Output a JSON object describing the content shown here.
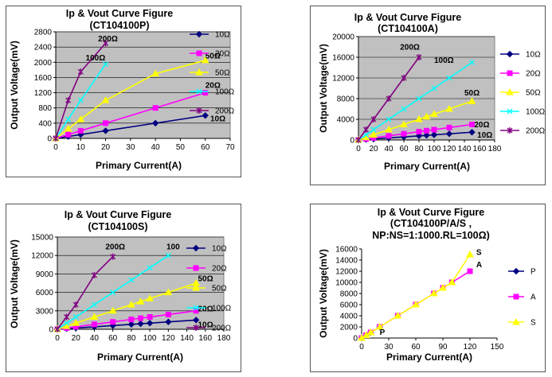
{
  "chart_data": [
    {
      "type": "line",
      "title": "Ip & Vout Curve Figure",
      "subtitle": "(CT104100P)",
      "xlabel": "Primary  Current(A)",
      "ylabel": "Output Voltage(mV)",
      "xlim": [
        0,
        70
      ],
      "ylim": [
        0,
        2800
      ],
      "xticks": [
        0,
        10,
        20,
        30,
        40,
        50,
        60,
        70
      ],
      "yticks": [
        0,
        400,
        800,
        1200,
        1600,
        2000,
        2400,
        2800
      ],
      "grid": true,
      "legend": "right",
      "series": [
        {
          "name": "10Ω",
          "color": "#000080",
          "marker": "diamond",
          "x": [
            0,
            5,
            10,
            20,
            40,
            60
          ],
          "y": [
            0,
            50,
            100,
            200,
            400,
            600
          ]
        },
        {
          "name": "20Ω",
          "color": "#ff00ff",
          "marker": "square",
          "x": [
            0,
            5,
            10,
            20,
            40,
            60
          ],
          "y": [
            0,
            100,
            200,
            400,
            800,
            1200
          ]
        },
        {
          "name": "50Ω",
          "color": "#ffff00",
          "marker": "triangle",
          "x": [
            0,
            5,
            10,
            20,
            40,
            60
          ],
          "y": [
            0,
            250,
            500,
            1000,
            1700,
            2050
          ]
        },
        {
          "name": "100Ω",
          "color": "#00ffff",
          "marker": "x",
          "x": [
            0,
            5,
            10,
            20
          ],
          "y": [
            0,
            500,
            1000,
            1950
          ]
        },
        {
          "name": "200Ω",
          "color": "#800080",
          "marker": "asterisk",
          "x": [
            0,
            5,
            10,
            20
          ],
          "y": [
            0,
            1000,
            1750,
            2500
          ]
        }
      ],
      "annotations": [
        {
          "text": "10Ω",
          "x": 62,
          "y": 450
        },
        {
          "text": "20Ω",
          "x": 60,
          "y": 1330
        },
        {
          "text": "50Ω",
          "x": 60,
          "y": 2100
        },
        {
          "text": "100Ω",
          "x": 12,
          "y": 2050
        },
        {
          "text": "200Ω",
          "x": 17,
          "y": 2550
        }
      ]
    },
    {
      "type": "line",
      "title": "Ip & Vout Curve Figure",
      "subtitle": "(CT104100A)",
      "xlabel": "Primary  Current(A)",
      "ylabel": "Output Voltage(mV)",
      "xlim": [
        0,
        180
      ],
      "ylim": [
        0,
        20000
      ],
      "xticks": [
        0,
        20,
        40,
        60,
        80,
        100,
        120,
        140,
        160,
        180
      ],
      "yticks": [
        0,
        4000,
        8000,
        12000,
        16000,
        20000
      ],
      "grid": true,
      "legend": "right",
      "series": [
        {
          "name": "10Ω",
          "color": "#000080",
          "marker": "diamond",
          "x": [
            0,
            10,
            20,
            40,
            60,
            80,
            90,
            100,
            120,
            150
          ],
          "y": [
            0,
            100,
            200,
            400,
            600,
            800,
            900,
            1000,
            1200,
            1500
          ]
        },
        {
          "name": "20Ω",
          "color": "#ff00ff",
          "marker": "square",
          "x": [
            0,
            10,
            20,
            40,
            60,
            80,
            90,
            100,
            120,
            150
          ],
          "y": [
            0,
            200,
            400,
            800,
            1200,
            1600,
            1800,
            2000,
            2400,
            3000
          ]
        },
        {
          "name": "50Ω",
          "color": "#ffff00",
          "marker": "triangle",
          "x": [
            0,
            10,
            20,
            40,
            60,
            80,
            90,
            100,
            120,
            150
          ],
          "y": [
            0,
            500,
            1000,
            2000,
            3000,
            4000,
            4500,
            5000,
            6000,
            7500
          ]
        },
        {
          "name": "100Ω",
          "color": "#00ffff",
          "marker": "x",
          "x": [
            0,
            10,
            20,
            40,
            60,
            80,
            100,
            120,
            150
          ],
          "y": [
            0,
            1000,
            2000,
            4000,
            6000,
            8000,
            10000,
            12000,
            15000
          ]
        },
        {
          "name": "200Ω",
          "color": "#800080",
          "marker": "asterisk",
          "x": [
            0,
            10,
            20,
            40,
            60,
            80
          ],
          "y": [
            0,
            2000,
            4000,
            8000,
            12000,
            16000
          ]
        }
      ],
      "annotations": [
        {
          "text": "10Ω",
          "x": 157,
          "y": 500
        },
        {
          "text": "20Ω",
          "x": 153,
          "y": 2500
        },
        {
          "text": "50Ω",
          "x": 140,
          "y": 8600
        },
        {
          "text": "100Ω",
          "x": 100,
          "y": 14900
        },
        {
          "text": "200Ω",
          "x": 55,
          "y": 17500
        }
      ]
    },
    {
      "type": "line",
      "title": "Ip & Vout Curve Figure",
      "subtitle": "(CT104100S)",
      "xlabel": "Primary  Current(A)",
      "ylabel": "Output Voltage(mV)",
      "xlim": [
        0,
        180
      ],
      "ylim": [
        0,
        15000
      ],
      "xticks": [
        0,
        20,
        40,
        60,
        80,
        100,
        120,
        140,
        160,
        180
      ],
      "yticks": [
        0,
        3000,
        6000,
        9000,
        12000,
        15000
      ],
      "grid": true,
      "legend": "right",
      "series": [
        {
          "name": "10Ω",
          "color": "#000080",
          "marker": "diamond",
          "x": [
            0,
            10,
            20,
            40,
            60,
            80,
            90,
            100,
            120,
            150
          ],
          "y": [
            0,
            100,
            200,
            400,
            600,
            800,
            900,
            1000,
            1200,
            1500
          ]
        },
        {
          "name": "20Ω",
          "color": "#ff00ff",
          "marker": "square",
          "x": [
            0,
            10,
            20,
            40,
            60,
            80,
            90,
            100,
            120,
            150
          ],
          "y": [
            0,
            200,
            400,
            800,
            1200,
            1600,
            1800,
            2000,
            2400,
            3000
          ]
        },
        {
          "name": "50Ω",
          "color": "#ffff00",
          "marker": "triangle",
          "x": [
            0,
            10,
            20,
            40,
            60,
            80,
            90,
            100,
            120,
            150
          ],
          "y": [
            0,
            500,
            1000,
            2000,
            3000,
            4000,
            4500,
            5000,
            6000,
            7500
          ]
        },
        {
          "name": "100Ω",
          "color": "#00ffff",
          "marker": "x",
          "x": [
            0,
            10,
            20,
            40,
            60,
            80,
            100,
            120
          ],
          "y": [
            0,
            1000,
            2000,
            4000,
            6000,
            8000,
            10000,
            12000
          ]
        },
        {
          "name": "200Ω",
          "color": "#800080",
          "marker": "asterisk",
          "x": [
            0,
            10,
            20,
            40,
            60
          ],
          "y": [
            0,
            2000,
            4000,
            8800,
            11800
          ]
        }
      ],
      "annotations": [
        {
          "text": "10Ω",
          "x": 152,
          "y": 300
        },
        {
          "text": "20Ω",
          "x": 152,
          "y": 2900
        },
        {
          "text": "50Ω",
          "x": 152,
          "y": 7800
        },
        {
          "text": "100",
          "x": 118,
          "y": 13000
        },
        {
          "text": "200Ω",
          "x": 52,
          "y": 13000
        }
      ]
    },
    {
      "type": "line",
      "title": "Ip & Vout Curve Figure",
      "subtitle": "(CT104100P/A/S ,",
      "subtitle2": "NP:NS=1:1000.RL=100Ω)",
      "xlabel": "Primary  Current(A)",
      "ylabel": "Output Voltage(mV)",
      "xlim": [
        0,
        150
      ],
      "ylim": [
        0,
        16000
      ],
      "xticks": [
        0,
        30,
        60,
        90,
        120,
        150
      ],
      "yticks": [
        0,
        2000,
        4000,
        6000,
        8000,
        10000,
        12000,
        14000,
        16000
      ],
      "grid": false,
      "legend": "right",
      "series": [
        {
          "name": "P",
          "color": "#000080",
          "marker": "diamond",
          "x": [
            0,
            5,
            10,
            20
          ],
          "y": [
            0,
            500,
            1000,
            2000
          ]
        },
        {
          "name": "A",
          "color": "#ff00ff",
          "marker": "square",
          "x": [
            0,
            5,
            10,
            20,
            40,
            60,
            80,
            90,
            100,
            120
          ],
          "y": [
            0,
            500,
            1000,
            2000,
            4000,
            6000,
            8000,
            9000,
            10000,
            12000
          ]
        },
        {
          "name": "S",
          "color": "#ffff00",
          "marker": "triangle",
          "x": [
            0,
            5,
            10,
            20,
            40,
            60,
            80,
            90,
            100,
            120
          ],
          "y": [
            0,
            500,
            1000,
            2000,
            4000,
            6000,
            8000,
            9000,
            10000,
            15000
          ]
        }
      ],
      "annotations": [
        {
          "text": "S",
          "x": 127,
          "y": 14900
        },
        {
          "text": "A",
          "x": 127,
          "y": 12700
        },
        {
          "text": "P",
          "x": 20,
          "y": 600
        }
      ]
    }
  ]
}
